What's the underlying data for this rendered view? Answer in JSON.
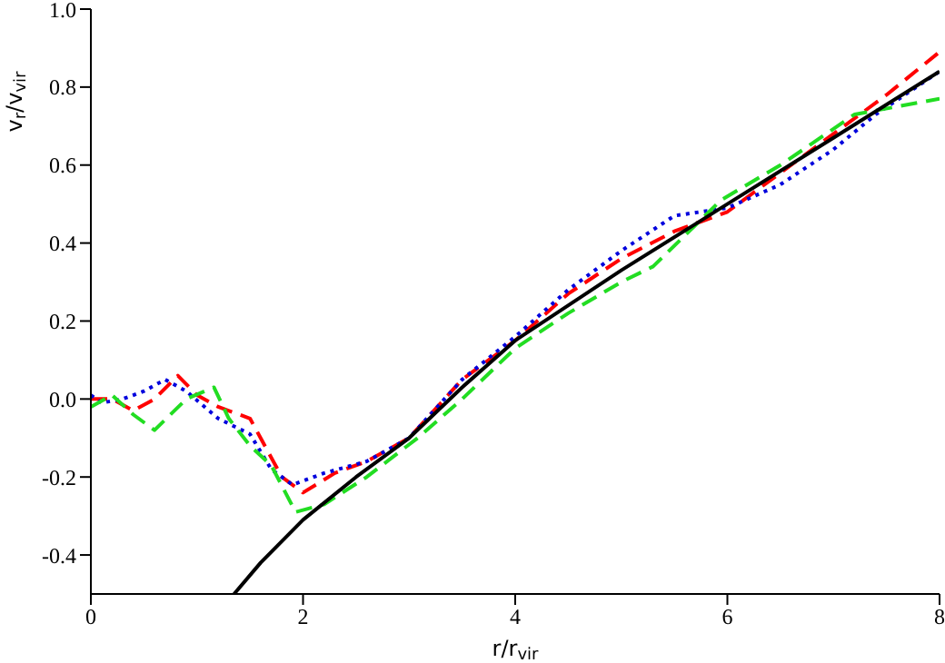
{
  "chart_data": {
    "type": "line",
    "xlabel": "r/r$_{vir}$",
    "ylabel": "v$_{r}$/v$_{vir}$",
    "xlim": [
      0,
      8
    ],
    "xticks": [
      0,
      2,
      4,
      6,
      8
    ],
    "ylim": [
      -0.5,
      1.0
    ],
    "yticks": [
      -0.4,
      -0.2,
      {
        "value": 0,
        "label": "0.0"
      },
      0.2,
      0.4,
      0.6,
      0.8,
      {
        "value": 1,
        "label": "1.0"
      }
    ],
    "grid": false,
    "legend": false,
    "marker": "none",
    "series": [
      {
        "color": "#ff0000",
        "line_style": "dashed",
        "x": [
          0,
          0.2,
          0.4,
          0.6,
          0.82,
          1.0,
          1.2,
          1.4,
          1.5,
          1.6,
          1.8,
          2.0,
          2.3,
          2.6,
          3.0,
          3.5,
          4.0,
          4.5,
          5.0,
          5.5,
          6.0,
          6.5,
          7.0,
          7.5,
          8.0
        ],
        "values": [
          0.0,
          0.0,
          -0.03,
          0.0,
          0.06,
          0.01,
          -0.02,
          -0.04,
          -0.05,
          -0.1,
          -0.2,
          -0.24,
          -0.19,
          -0.16,
          -0.1,
          0.05,
          0.15,
          0.27,
          0.36,
          0.43,
          0.48,
          0.58,
          0.68,
          0.78,
          0.89
        ]
      },
      {
        "color": "#0000dd",
        "line_style": "dotted",
        "x": [
          0,
          0.1,
          0.3,
          0.5,
          0.7,
          0.9,
          1.2,
          1.5,
          1.7,
          1.9,
          2.2,
          2.6,
          3.0,
          3.5,
          4.0,
          4.5,
          5.0,
          5.5,
          6.0,
          6.5,
          7.0,
          7.4,
          8.0
        ],
        "values": [
          0.01,
          -0.01,
          0.0,
          0.02,
          0.05,
          0.02,
          -0.05,
          -0.09,
          -0.18,
          -0.22,
          -0.19,
          -0.16,
          -0.1,
          0.05,
          0.16,
          0.28,
          0.38,
          0.47,
          0.49,
          0.55,
          0.64,
          0.73,
          0.84
        ]
      },
      {
        "color": "#22dd22",
        "line_style": "dashed",
        "x": [
          0,
          0.2,
          0.4,
          0.6,
          0.9,
          1.16,
          1.3,
          1.5,
          1.7,
          1.93,
          2.2,
          2.6,
          3.08,
          3.5,
          4.0,
          4.5,
          5.0,
          5.3,
          5.94,
          6.5,
          7.2,
          8.0
        ],
        "values": [
          -0.02,
          0.01,
          -0.04,
          -0.08,
          0.0,
          0.03,
          -0.05,
          -0.12,
          -0.17,
          -0.29,
          -0.27,
          -0.2,
          -0.1,
          0.0,
          0.13,
          0.22,
          0.3,
          0.34,
          0.51,
          0.6,
          0.73,
          0.77
        ]
      },
      {
        "color": "#000000",
        "line_style": "solid",
        "x": [
          1.35,
          1.6,
          2.0,
          2.5,
          3.0,
          3.5,
          4.0,
          5.0,
          6.0,
          7.0,
          8.0
        ],
        "values": [
          -0.5,
          -0.42,
          -0.31,
          -0.2,
          -0.1,
          0.03,
          0.15,
          0.33,
          0.5,
          0.67,
          0.84
        ]
      }
    ]
  }
}
